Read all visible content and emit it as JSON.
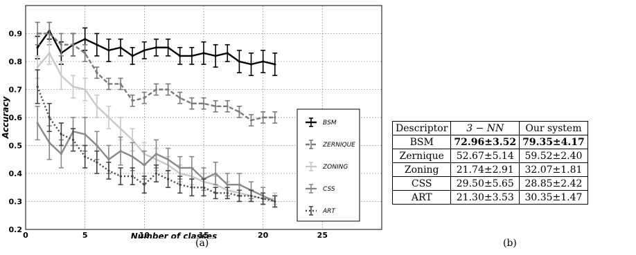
{
  "chart_data": {
    "type": "line",
    "xlabel": "Number of classes",
    "ylabel": "Accuracy",
    "xlim": [
      0,
      30
    ],
    "ylim": [
      0.2,
      1.0
    ],
    "x_ticks": [
      0,
      5,
      10,
      15,
      20,
      25
    ],
    "y_ticks": [
      0.2,
      0.3,
      0.4,
      0.5,
      0.6,
      0.7,
      0.8,
      0.9
    ],
    "grid": true,
    "legend_position": "right",
    "x": [
      1,
      2,
      3,
      4,
      5,
      6,
      7,
      8,
      9,
      10,
      11,
      12,
      13,
      14,
      15,
      16,
      17,
      18,
      19,
      20,
      21
    ],
    "series": [
      {
        "name": "BSM",
        "color": "#000000",
        "dash": "solid",
        "values": [
          0.85,
          0.91,
          0.83,
          0.86,
          0.88,
          0.86,
          0.84,
          0.85,
          0.82,
          0.84,
          0.85,
          0.85,
          0.82,
          0.82,
          0.83,
          0.82,
          0.83,
          0.8,
          0.79,
          0.8,
          0.79
        ],
        "errors": [
          0.04,
          0.03,
          0.04,
          0.04,
          0.04,
          0.04,
          0.04,
          0.03,
          0.03,
          0.03,
          0.03,
          0.03,
          0.03,
          0.03,
          0.04,
          0.04,
          0.03,
          0.04,
          0.04,
          0.04,
          0.04
        ]
      },
      {
        "name": "ZERNIQUE",
        "color": "#7a7a7a",
        "dash": "dashed",
        "values": [
          0.9,
          0.9,
          0.86,
          0.86,
          0.83,
          0.76,
          0.72,
          0.72,
          0.66,
          0.67,
          0.7,
          0.7,
          0.67,
          0.65,
          0.65,
          0.64,
          0.64,
          0.62,
          0.59,
          0.6,
          0.6
        ],
        "errors": [
          0.04,
          0.04,
          0.04,
          0.04,
          0.03,
          0.02,
          0.02,
          0.02,
          0.02,
          0.02,
          0.02,
          0.02,
          0.02,
          0.02,
          0.02,
          0.02,
          0.02,
          0.02,
          0.02,
          0.02,
          0.02
        ]
      },
      {
        "name": "ZONING",
        "color": "#c8c8c8",
        "dash": "solid",
        "values": [
          0.78,
          0.83,
          0.75,
          0.71,
          0.7,
          0.64,
          0.6,
          0.56,
          0.52,
          0.47,
          0.45,
          0.43,
          0.4,
          0.39,
          0.37,
          0.36,
          0.34,
          0.33,
          0.32,
          0.31,
          0.31
        ],
        "errors": [
          0.04,
          0.04,
          0.05,
          0.04,
          0.04,
          0.04,
          0.04,
          0.04,
          0.04,
          0.04,
          0.04,
          0.03,
          0.03,
          0.03,
          0.03,
          0.03,
          0.03,
          0.03,
          0.02,
          0.02,
          0.02
        ]
      },
      {
        "name": "CSS",
        "color": "#888888",
        "dash": "solid",
        "values": [
          0.58,
          0.51,
          0.47,
          0.55,
          0.54,
          0.5,
          0.45,
          0.48,
          0.46,
          0.43,
          0.47,
          0.45,
          0.42,
          0.42,
          0.38,
          0.4,
          0.36,
          0.36,
          0.34,
          0.32,
          0.3
        ],
        "errors": [
          0.06,
          0.06,
          0.05,
          0.05,
          0.06,
          0.05,
          0.05,
          0.05,
          0.05,
          0.05,
          0.05,
          0.04,
          0.04,
          0.04,
          0.04,
          0.04,
          0.04,
          0.04,
          0.03,
          0.03,
          0.02
        ]
      },
      {
        "name": "ART",
        "color": "#444444",
        "dash": "dotted",
        "values": [
          0.71,
          0.6,
          0.54,
          0.52,
          0.46,
          0.44,
          0.41,
          0.39,
          0.39,
          0.36,
          0.4,
          0.38,
          0.36,
          0.35,
          0.35,
          0.33,
          0.33,
          0.32,
          0.32,
          0.31,
          0.3
        ],
        "errors": [
          0.06,
          0.05,
          0.04,
          0.04,
          0.04,
          0.04,
          0.03,
          0.03,
          0.03,
          0.03,
          0.03,
          0.03,
          0.03,
          0.03,
          0.03,
          0.02,
          0.02,
          0.02,
          0.02,
          0.02,
          0.02
        ]
      }
    ]
  },
  "captions": {
    "a": "(a)",
    "b": "(b)"
  },
  "table": {
    "headers": [
      "Descriptor",
      "3 − NN",
      "Our system"
    ],
    "rows": [
      {
        "descriptor": "BSM",
        "nn": "72.96±3.52",
        "ours": "79.35±4.17",
        "bold": true
      },
      {
        "descriptor": "Zernique",
        "nn": "52.67±5.14",
        "ours": "59.52±2.40",
        "bold": false
      },
      {
        "descriptor": "Zoning",
        "nn": "21.74±2.91",
        "ours": "32.07±1.81",
        "bold": false
      },
      {
        "descriptor": "CSS",
        "nn": "29.50±5.65",
        "ours": "28.85±2.42",
        "bold": false
      },
      {
        "descriptor": "ART",
        "nn": "21.30±3.53",
        "ours": "30.35±1.47",
        "bold": false
      }
    ]
  }
}
